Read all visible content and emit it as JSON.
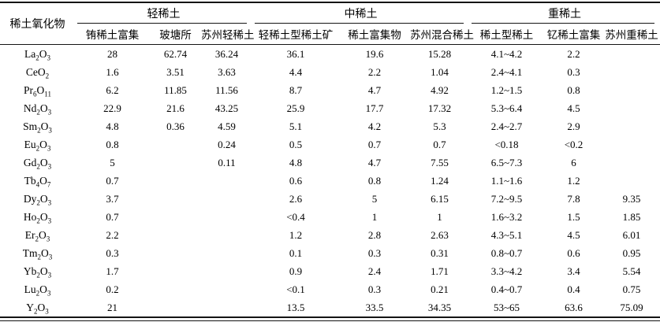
{
  "page": {
    "background_color": "#ffffff",
    "text_color": "#000000",
    "rule_color": "#141414"
  },
  "table": {
    "corner_header": "稀土氧化物",
    "groups": [
      {
        "label": "轻稀土",
        "columns": [
          "铕稀土富集",
          "玻塘所",
          "苏州轻稀土"
        ]
      },
      {
        "label": "中稀土",
        "columns": [
          "轻稀土型稀土矿",
          "稀土富集物",
          "苏州混合稀土"
        ]
      },
      {
        "label": "重稀土",
        "columns": [
          "稀土型稀土",
          "钇稀土富集",
          "苏州重稀土"
        ]
      }
    ],
    "rows": [
      {
        "formula": "La_2O_3",
        "values": [
          "28",
          "62.74",
          "36.24",
          "36.1",
          "19.6",
          "15.28",
          "4.1~4.2",
          "2.2",
          ""
        ]
      },
      {
        "formula": "CeO_2",
        "values": [
          "1.6",
          "3.51",
          "3.63",
          "4.4",
          "2.2",
          "1.04",
          "2.4~4.1",
          "0.3",
          ""
        ]
      },
      {
        "formula": "Pr_6O_11",
        "values": [
          "6.2",
          "11.85",
          "11.56",
          "8.7",
          "4.7",
          "4.92",
          "1.2~1.5",
          "0.8",
          ""
        ]
      },
      {
        "formula": "Nd_2O_3",
        "values": [
          "22.9",
          "21.6",
          "43.25",
          "25.9",
          "17.7",
          "17.32",
          "5.3~6.4",
          "4.5",
          ""
        ]
      },
      {
        "formula": "Sm_2O_3",
        "values": [
          "4.8",
          "0.36",
          "4.59",
          "5.1",
          "4.2",
          "5.3",
          "2.4~2.7",
          "2.9",
          ""
        ]
      },
      {
        "formula": "Eu_2O_3",
        "values": [
          "0.8",
          "",
          "0.24",
          "0.5",
          "0.7",
          "0.7",
          "<0.18",
          "<0.2",
          ""
        ]
      },
      {
        "formula": "Gd_2O_3",
        "values": [
          "5",
          "",
          "0.11",
          "4.8",
          "4.7",
          "7.55",
          "6.5~7.3",
          "6",
          ""
        ]
      },
      {
        "formula": "Tb_4O_7",
        "values": [
          "0.7",
          "",
          "",
          "0.6",
          "0.8",
          "1.24",
          "1.1~1.6",
          "1.2",
          ""
        ]
      },
      {
        "formula": "Dy_2O_3",
        "values": [
          "3.7",
          "",
          "",
          "2.6",
          "5",
          "6.15",
          "7.2~9.5",
          "7.8",
          "9.35"
        ]
      },
      {
        "formula": "Ho_2O_3",
        "values": [
          "0.7",
          "",
          "",
          "<0.4",
          "1",
          "1",
          "1.6~3.2",
          "1.5",
          "1.85"
        ]
      },
      {
        "formula": "Er_2O_3",
        "values": [
          "2.2",
          "",
          "",
          "1.2",
          "2.8",
          "2.63",
          "4.3~5.1",
          "4.5",
          "6.01"
        ]
      },
      {
        "formula": "Tm_2O_3",
        "values": [
          "0.3",
          "",
          "",
          "0.1",
          "0.3",
          "0.31",
          "0.8~0.7",
          "0.6",
          "0.95"
        ]
      },
      {
        "formula": "Yb_2O_3",
        "values": [
          "1.7",
          "",
          "",
          "0.9",
          "2.4",
          "1.71",
          "3.3~4.2",
          "3.4",
          "5.54"
        ]
      },
      {
        "formula": "Lu_2O_3",
        "values": [
          "0.2",
          "",
          "",
          "<0.1",
          "0.3",
          "0.21",
          "0.4~0.7",
          "0.4",
          "0.75"
        ]
      },
      {
        "formula": "Y_2O_3",
        "values": [
          "21",
          "",
          "",
          "13.5",
          "33.5",
          "34.35",
          "53~65",
          "63.6",
          "75.09"
        ]
      }
    ]
  }
}
